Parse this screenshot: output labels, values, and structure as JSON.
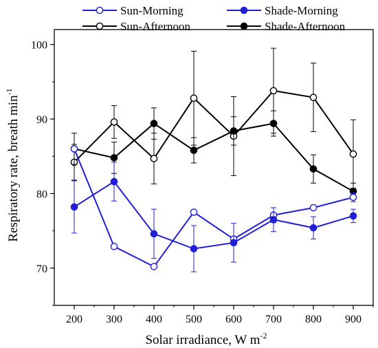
{
  "chart_data": {
    "type": "line",
    "title": "",
    "xlabel": "Solar irradiance, W m",
    "xlabel_sup": "-2",
    "ylabel": "Respiratory rate, breath min",
    "ylabel_sup": "-1",
    "x": [
      200,
      300,
      400,
      500,
      600,
      700,
      800,
      900
    ],
    "xlim": [
      150,
      950
    ],
    "ylim": [
      65,
      102
    ],
    "xticks": [
      "200",
      "300",
      "400",
      "500",
      "600",
      "700",
      "800",
      "900"
    ],
    "yticks": [
      "70",
      "80",
      "90",
      "100"
    ],
    "grid": false,
    "legend_position": "top",
    "series": [
      {
        "name": "Sun-Morning",
        "color": "#1f1fd6",
        "marker": "open-circle",
        "values": [
          86.0,
          72.9,
          70.2,
          77.5,
          73.9,
          77.1,
          78.1,
          79.5
        ],
        "errors": [
          null,
          null,
          null,
          null,
          null,
          1.0,
          null,
          0.6
        ]
      },
      {
        "name": "Shade-Morning",
        "color": "#1f1fd6",
        "marker": "filled-circle",
        "values": [
          78.2,
          81.6,
          74.6,
          72.6,
          73.4,
          76.5,
          75.4,
          77.0
        ],
        "errors": [
          3.5,
          2.6,
          3.3,
          3.1,
          2.6,
          1.6,
          1.5,
          0.9
        ]
      },
      {
        "name": "Sun-Afternoon",
        "color": "#000000",
        "marker": "open-circle",
        "values": [
          84.2,
          89.6,
          84.7,
          92.8,
          87.7,
          93.8,
          92.9,
          85.3
        ],
        "errors": [
          2.4,
          2.2,
          3.4,
          6.3,
          5.3,
          5.7,
          4.6,
          4.6
        ]
      },
      {
        "name": "Shade-Afternoon",
        "color": "#000000",
        "marker": "filled-circle",
        "values": [
          86.0,
          84.8,
          89.4,
          85.8,
          88.4,
          89.4,
          83.3,
          80.3
        ],
        "errors": [
          2.1,
          2.1,
          2.1,
          1.7,
          1.9,
          1.7,
          1.9,
          1.1
        ]
      }
    ]
  }
}
